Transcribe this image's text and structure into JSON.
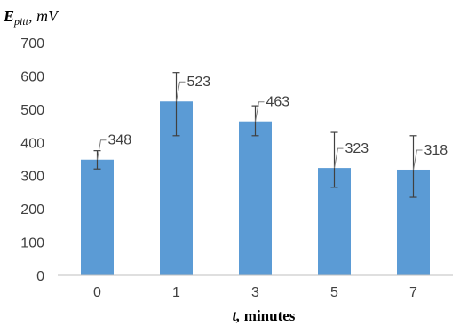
{
  "chart_data": {
    "type": "bar",
    "ylabel_main": "E",
    "ylabel_sub": "pitt",
    "ylabel_unit": ", mV",
    "xlabel_var": "t,",
    "xlabel_unit": " minutes",
    "categories": [
      "0",
      "1",
      "3",
      "5",
      "7"
    ],
    "values": [
      348,
      523,
      463,
      323,
      318
    ],
    "error_upper": [
      375,
      610,
      510,
      430,
      420
    ],
    "error_lower": [
      320,
      420,
      420,
      265,
      235
    ],
    "data_labels": [
      "348",
      "523",
      "463",
      "323",
      "318"
    ],
    "ylim": [
      0,
      700
    ],
    "yticks": [
      "0",
      "100",
      "200",
      "300",
      "400",
      "500",
      "600",
      "700"
    ],
    "grid": false,
    "bar_color": "#5b9bd5"
  }
}
